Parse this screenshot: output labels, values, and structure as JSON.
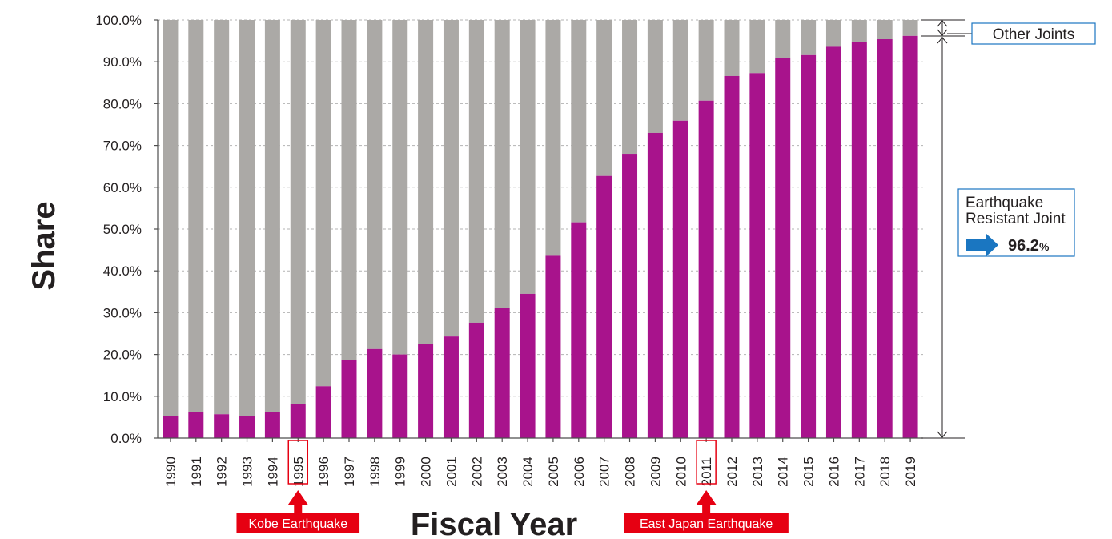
{
  "chart_data": {
    "type": "bar",
    "stacked": true,
    "ylabel": "Share",
    "xlabel": "Fiscal Year",
    "ylim": [
      0,
      100
    ],
    "yticks": [
      "0.0%",
      "10.0%",
      "20.0%",
      "30.0%",
      "40.0%",
      "50.0%",
      "60.0%",
      "70.0%",
      "80.0%",
      "90.0%",
      "100.0%"
    ],
    "categories": [
      "1990",
      "1991",
      "1992",
      "1993",
      "1994",
      "1995",
      "1996",
      "1997",
      "1998",
      "1999",
      "2000",
      "2001",
      "2002",
      "2003",
      "2004",
      "2005",
      "2006",
      "2007",
      "2008",
      "2009",
      "2010",
      "2011",
      "2012",
      "2013",
      "2014",
      "2015",
      "2016",
      "2017",
      "2018",
      "2019"
    ],
    "series": [
      {
        "name": "Earthquake Resistant Joint",
        "color": "#a8138c",
        "values": [
          5.3,
          6.3,
          5.7,
          5.3,
          6.3,
          8.2,
          12.4,
          18.6,
          21.3,
          20.0,
          22.5,
          24.3,
          27.6,
          31.2,
          34.5,
          43.6,
          51.6,
          62.7,
          68.0,
          73.0,
          75.9,
          80.7,
          86.6,
          87.3,
          91.0,
          91.6,
          93.6,
          94.7,
          95.4,
          96.2
        ]
      },
      {
        "name": "Other Joints",
        "color": "#aba9a6",
        "values": [
          94.7,
          93.7,
          94.3,
          94.7,
          93.7,
          91.8,
          87.6,
          81.4,
          78.7,
          80.0,
          77.5,
          75.7,
          72.4,
          68.8,
          65.5,
          56.4,
          48.4,
          37.3,
          32.0,
          27.0,
          24.1,
          19.3,
          13.4,
          12.7,
          9.0,
          8.4,
          6.4,
          5.3,
          4.6,
          3.8
        ]
      }
    ],
    "grid": "horizontal dashed",
    "highlighted_categories": [
      "1995",
      "2011"
    ],
    "annotations": [
      {
        "text": "Kobe Earthquake",
        "category": "1995",
        "color": "#e60012"
      },
      {
        "text": "East Japan Earthquake",
        "category": "2011",
        "color": "#e60012"
      }
    ],
    "callouts": {
      "other": {
        "label": "Other Joints"
      },
      "resistant": {
        "label_line1": "Earthquake",
        "label_line2": "Resistant Joint",
        "value": "96.2",
        "unit": "%",
        "arrow_color": "#1a76c1"
      }
    }
  }
}
